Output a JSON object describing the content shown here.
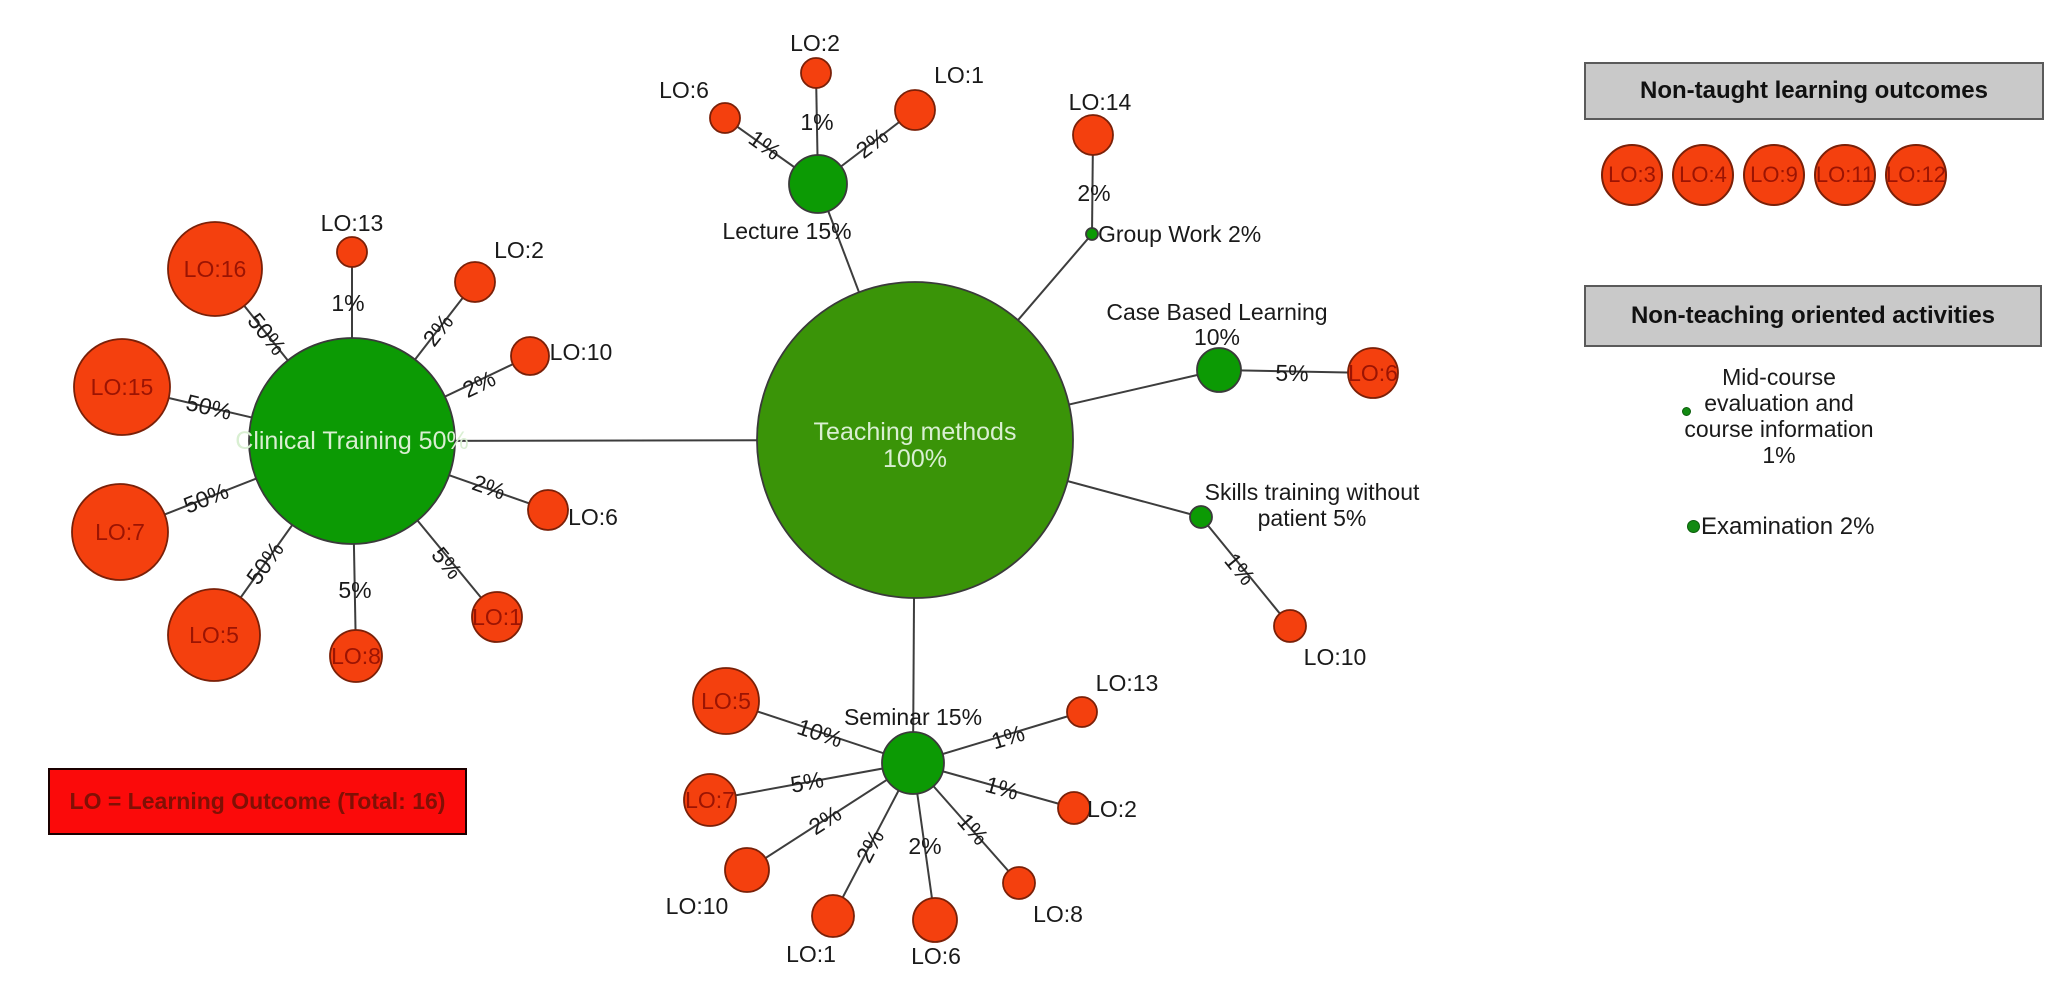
{
  "legend": {
    "label": "LO = Learning Outcome (Total: 16)"
  },
  "panels": {
    "non_taught": {
      "title": "Non-taught learning outcomes",
      "items": [
        "LO:3",
        "LO:4",
        "LO:9",
        "LO:11",
        "LO:12"
      ]
    },
    "non_teaching": {
      "title": "Non-teaching oriented activities",
      "activities": [
        {
          "id": "midcourse",
          "label": "Mid-course\nevaluation and\ncourse information\n1%"
        },
        {
          "id": "examination",
          "label": "Examination 2%"
        }
      ]
    }
  },
  "colors": {
    "root_green": "#3a9408",
    "method_green": "#0c9a04",
    "outcome_red": "#f4400e",
    "method_stroke": "#3a3a3a",
    "outcome_stroke": "#7a2008",
    "edge": "#3d3d3d",
    "inside_green_text": "#d9efd2",
    "inside_red_text": "#9b1403",
    "label_black": "#1a1a1a",
    "panel_gray": "#c9c9c9",
    "legend_red": "#fb0a0a"
  },
  "graph": {
    "nodes": [
      {
        "id": "teaching",
        "kind": "root",
        "label": [
          "Teaching methods",
          "100%"
        ]
      },
      {
        "id": "clinical",
        "kind": "method",
        "label": "Clinical Training 50%"
      },
      {
        "id": "lecture",
        "kind": "method",
        "label": "Lecture 15%"
      },
      {
        "id": "seminar",
        "kind": "method",
        "label": "Seminar 15%"
      },
      {
        "id": "groupwork",
        "kind": "method",
        "label": "Group Work 2%"
      },
      {
        "id": "cbl",
        "kind": "method",
        "label": [
          "Case Based Learning",
          "10%"
        ]
      },
      {
        "id": "skills",
        "kind": "method",
        "label": [
          "Skills training without",
          "patient 5%"
        ]
      },
      {
        "id": "c16",
        "kind": "outcome",
        "label": "LO:16"
      },
      {
        "id": "c13",
        "kind": "outcome",
        "label": "LO:13"
      },
      {
        "id": "c2",
        "kind": "outcome",
        "label": "LO:2"
      },
      {
        "id": "c15",
        "kind": "outcome",
        "label": "LO:15"
      },
      {
        "id": "c10",
        "kind": "outcome",
        "label": "LO:10"
      },
      {
        "id": "c7",
        "kind": "outcome",
        "label": "LO:7"
      },
      {
        "id": "c6",
        "kind": "outcome",
        "label": "LO:6"
      },
      {
        "id": "c5",
        "kind": "outcome",
        "label": "LO:5"
      },
      {
        "id": "c8",
        "kind": "outcome",
        "label": "LO:8"
      },
      {
        "id": "c1",
        "kind": "outcome",
        "label": "LO:1"
      },
      {
        "id": "l6",
        "kind": "outcome",
        "label": "LO:6"
      },
      {
        "id": "l2",
        "kind": "outcome",
        "label": "LO:2"
      },
      {
        "id": "l1",
        "kind": "outcome",
        "label": "LO:1"
      },
      {
        "id": "g14",
        "kind": "outcome",
        "label": "LO:14"
      },
      {
        "id": "cb6",
        "kind": "outcome",
        "label": "LO:6"
      },
      {
        "id": "s10",
        "kind": "outcome",
        "label": "LO:10"
      },
      {
        "id": "se5",
        "kind": "outcome",
        "label": "LO:5"
      },
      {
        "id": "se7",
        "kind": "outcome",
        "label": "LO:7"
      },
      {
        "id": "se10",
        "kind": "outcome",
        "label": "LO:10"
      },
      {
        "id": "se1",
        "kind": "outcome",
        "label": "LO:1"
      },
      {
        "id": "se6",
        "kind": "outcome",
        "label": "LO:6"
      },
      {
        "id": "se8",
        "kind": "outcome",
        "label": "LO:8"
      },
      {
        "id": "se2",
        "kind": "outcome",
        "label": "LO:2"
      },
      {
        "id": "se13",
        "kind": "outcome",
        "label": "LO:13"
      }
    ],
    "edges": [
      {
        "from": "teaching",
        "to": "clinical",
        "label": ""
      },
      {
        "from": "teaching",
        "to": "lecture",
        "label": ""
      },
      {
        "from": "teaching",
        "to": "groupwork",
        "label": ""
      },
      {
        "from": "teaching",
        "to": "cbl",
        "label": ""
      },
      {
        "from": "teaching",
        "to": "skills",
        "label": ""
      },
      {
        "from": "teaching",
        "to": "seminar",
        "label": ""
      },
      {
        "from": "clinical",
        "to": "c16",
        "label": "50%"
      },
      {
        "from": "clinical",
        "to": "c13",
        "label": "1%"
      },
      {
        "from": "clinical",
        "to": "c2",
        "label": "2%"
      },
      {
        "from": "clinical",
        "to": "c15",
        "label": "50%"
      },
      {
        "from": "clinical",
        "to": "c10",
        "label": "2%"
      },
      {
        "from": "clinical",
        "to": "c7",
        "label": "50%"
      },
      {
        "from": "clinical",
        "to": "c6",
        "label": "2%"
      },
      {
        "from": "clinical",
        "to": "c5",
        "label": "50%"
      },
      {
        "from": "clinical",
        "to": "c8",
        "label": "5%"
      },
      {
        "from": "clinical",
        "to": "c1",
        "label": "5%"
      },
      {
        "from": "lecture",
        "to": "l6",
        "label": "1%"
      },
      {
        "from": "lecture",
        "to": "l2",
        "label": "1%"
      },
      {
        "from": "lecture",
        "to": "l1",
        "label": "2%"
      },
      {
        "from": "groupwork",
        "to": "g14",
        "label": "2%"
      },
      {
        "from": "cbl",
        "to": "cb6",
        "label": "5%"
      },
      {
        "from": "skills",
        "to": "s10",
        "label": "1%"
      },
      {
        "from": "seminar",
        "to": "se5",
        "label": "10%"
      },
      {
        "from": "seminar",
        "to": "se7",
        "label": "5%"
      },
      {
        "from": "seminar",
        "to": "se10",
        "label": "2%"
      },
      {
        "from": "seminar",
        "to": "se1",
        "label": "2%"
      },
      {
        "from": "seminar",
        "to": "se6",
        "label": "2%"
      },
      {
        "from": "seminar",
        "to": "se8",
        "label": "1%"
      },
      {
        "from": "seminar",
        "to": "se2",
        "label": "1%"
      },
      {
        "from": "seminar",
        "to": "se13",
        "label": "1%"
      }
    ]
  }
}
